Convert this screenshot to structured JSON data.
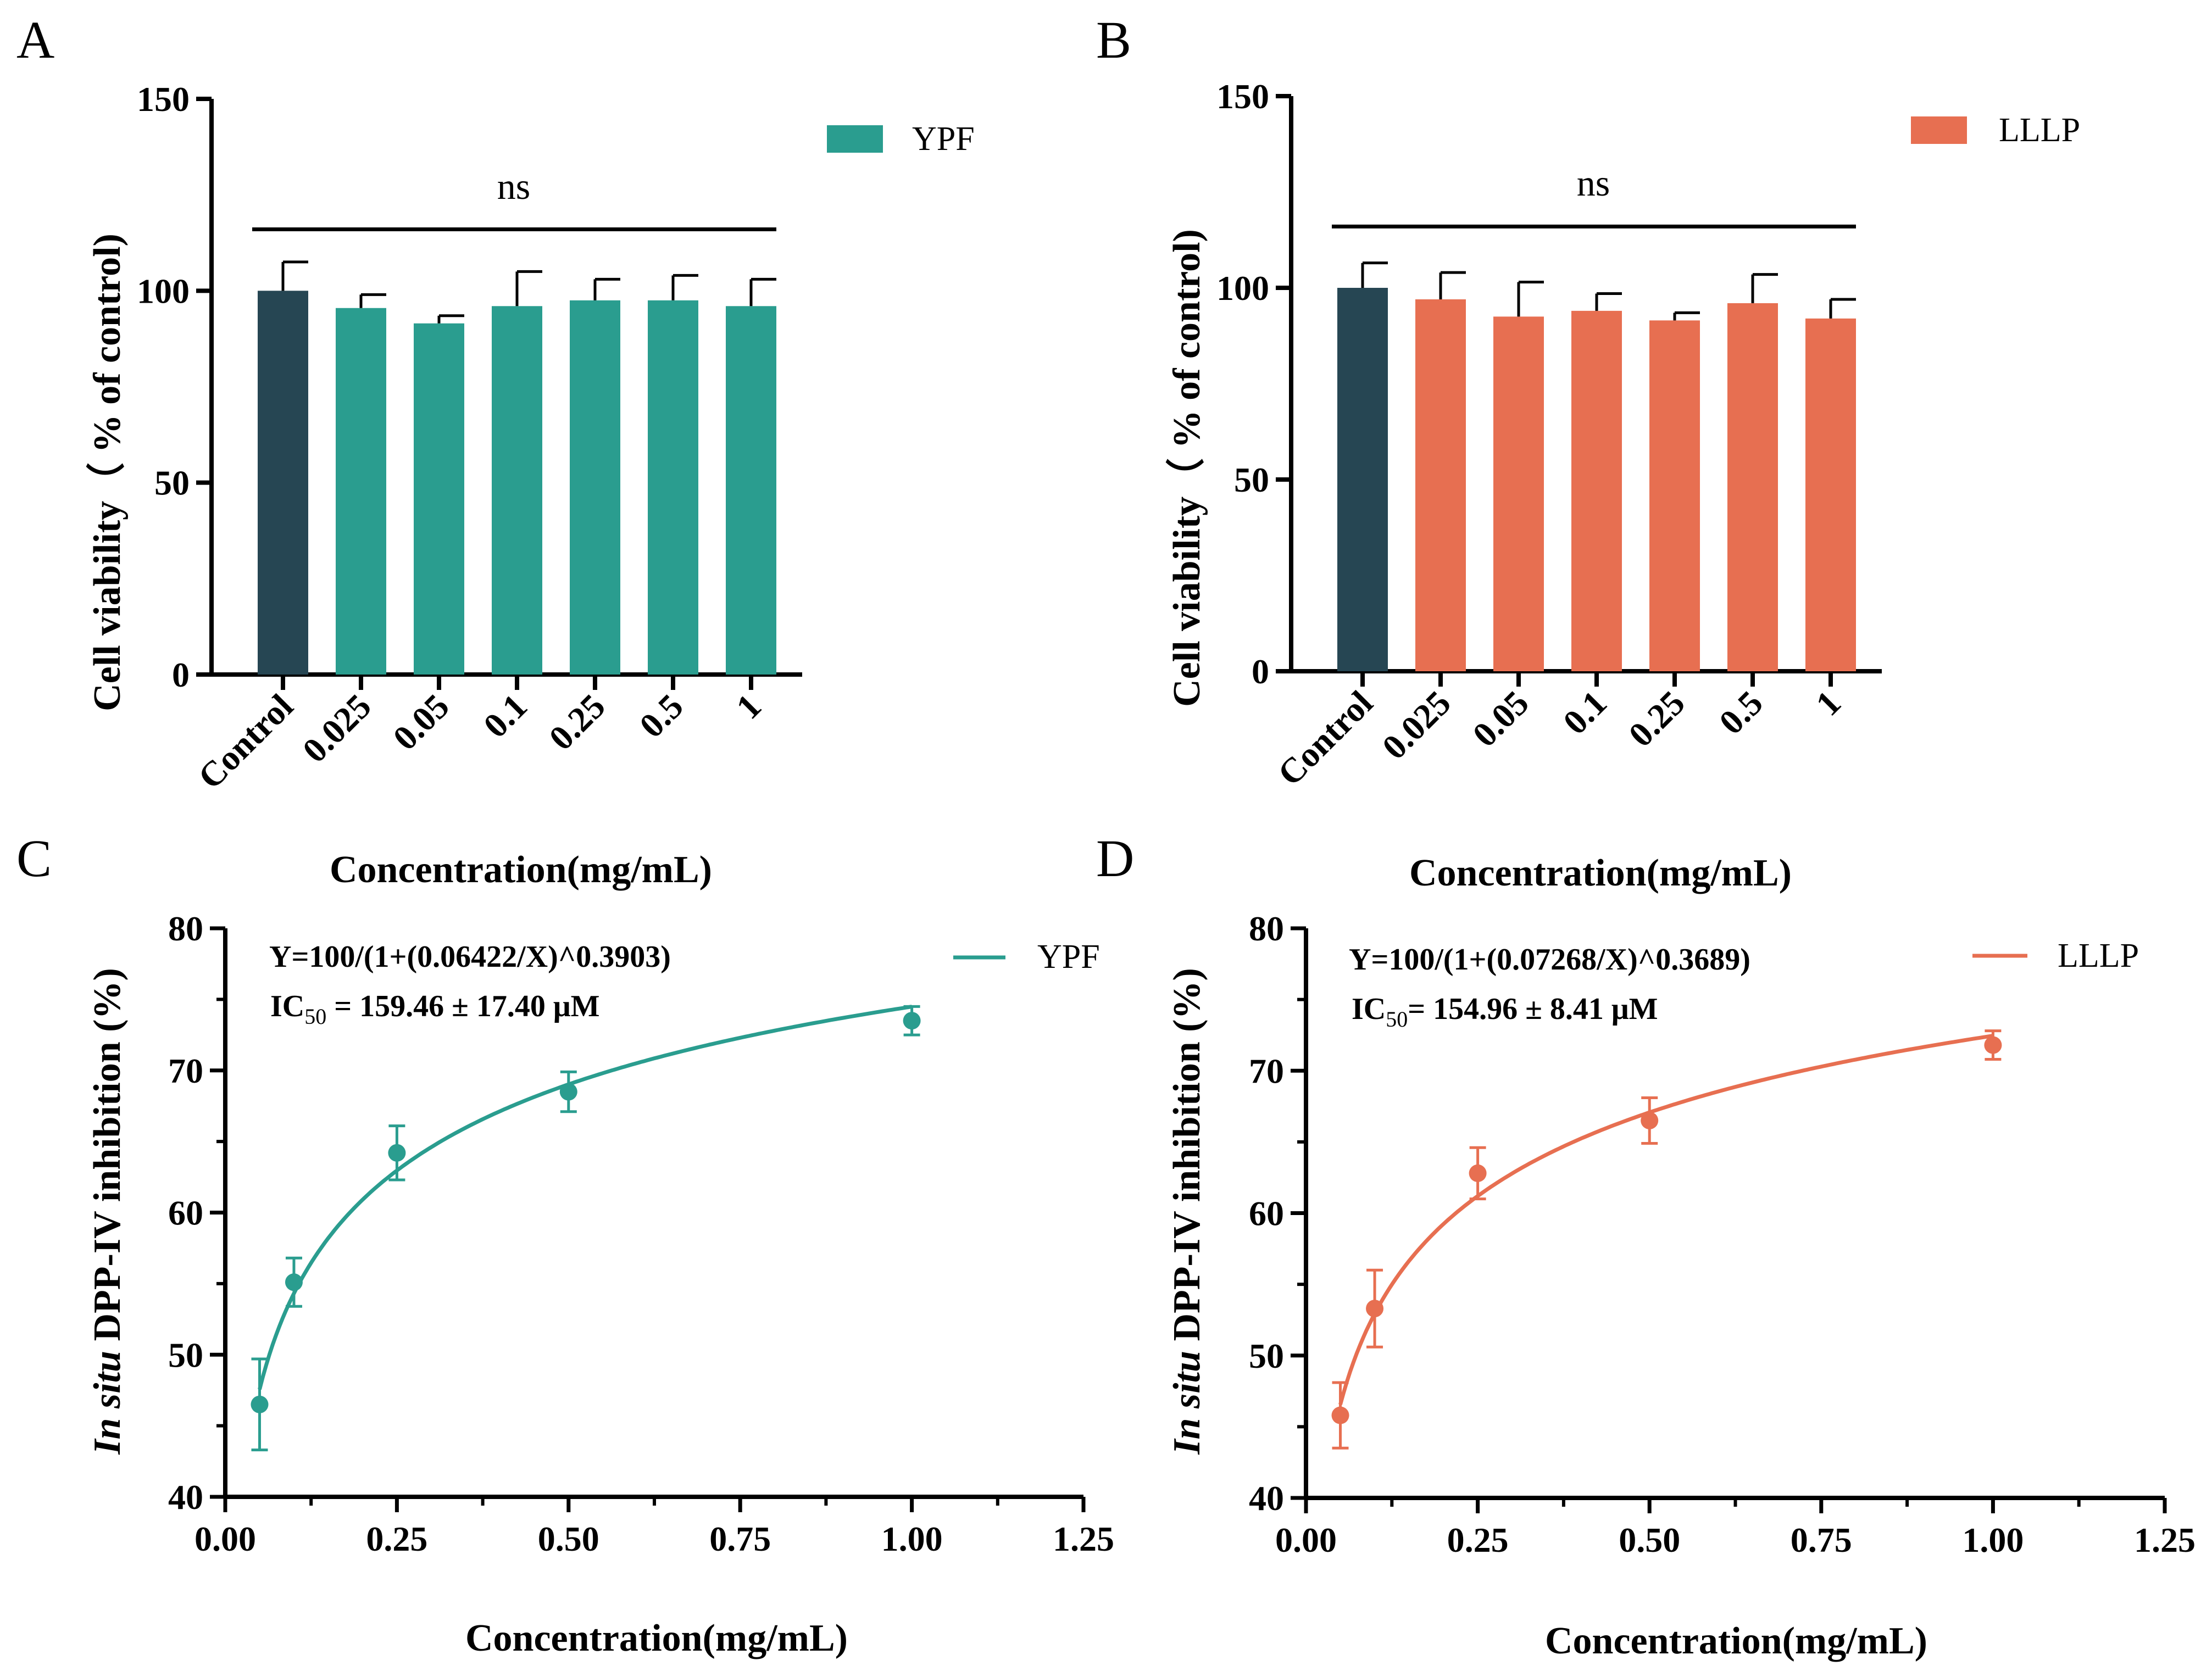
{
  "chart_data": [
    {
      "panel": "A",
      "type": "bar",
      "categories": [
        "Control",
        "0.025",
        "0.05",
        "0.1",
        "0.25",
        "0.5",
        "1"
      ],
      "values": [
        100,
        95.5,
        91.5,
        96,
        97.5,
        97.5,
        96
      ],
      "errors": [
        7.5,
        3.5,
        2.0,
        9.0,
        5.5,
        6.5,
        7.0
      ],
      "bar_colors": [
        "#264653",
        "#2a9d8f",
        "#2a9d8f",
        "#2a9d8f",
        "#2a9d8f",
        "#2a9d8f",
        "#2a9d8f"
      ],
      "legend": {
        "label": "YPF",
        "color": "#2a9d8f"
      },
      "significance": "ns",
      "significance_value": 116,
      "ylabel": "Cell viability（ % of control)",
      "xlabel": "Concentration(mg/mL)",
      "ylim": [
        0,
        150
      ],
      "yticks": [
        0,
        50,
        100,
        150
      ]
    },
    {
      "panel": "B",
      "type": "bar",
      "categories": [
        "Control",
        "0.025",
        "0.05",
        "0.1",
        "0.25",
        "0.5",
        "1"
      ],
      "values": [
        100,
        97,
        92.5,
        94,
        91.5,
        96,
        92
      ],
      "errors": [
        6.5,
        7.0,
        9.0,
        4.5,
        2.0,
        7.5,
        5.0
      ],
      "bar_colors": [
        "#264653",
        "#e76f51",
        "#e76f51",
        "#e76f51",
        "#e76f51",
        "#e76f51",
        "#e76f51"
      ],
      "legend": {
        "label": "LLLP",
        "color": "#e76f51"
      },
      "significance": "ns",
      "significance_value": 116,
      "ylabel": "Cell viability（ % of control)",
      "xlabel": "Concentration(mg/mL)",
      "ylim": [
        0,
        150
      ],
      "yticks": [
        0,
        50,
        100,
        150
      ]
    },
    {
      "panel": "C",
      "type": "scatter",
      "x": [
        0.05,
        0.1,
        0.25,
        0.5,
        1.0
      ],
      "y": [
        46.5,
        55.1,
        64.2,
        68.5,
        73.5
      ],
      "errors": [
        3.2,
        1.7,
        1.9,
        1.4,
        1.0
      ],
      "color": "#2a9d8f",
      "fit": {
        "c": 0.06422,
        "n": 0.3903
      },
      "equation": "Y=100/(1+(0.06422/X)^0.3903)",
      "ic50_prefix": "IC",
      "ic50_sub": "50",
      "ic50_value": " = 159.46 ± 17.40 μM",
      "legend": {
        "label": "YPF",
        "color": "#2a9d8f"
      },
      "ylabel_italic": "In situ",
      "ylabel_rest": " DPP-IV inhibition (%)",
      "xlabel": "Concentration(mg/mL)",
      "xlim": [
        0,
        1.25
      ],
      "ylim": [
        40,
        80
      ],
      "xticks": [
        "0.00",
        "0.25",
        "0.50",
        "0.75",
        "1.00",
        "1.25"
      ],
      "yticks": [
        40,
        50,
        60,
        70,
        80
      ]
    },
    {
      "panel": "D",
      "type": "scatter",
      "x": [
        0.05,
        0.1,
        0.25,
        0.5,
        1.0
      ],
      "y": [
        45.8,
        53.3,
        62.8,
        66.5,
        71.8
      ],
      "errors": [
        2.3,
        2.7,
        1.8,
        1.6,
        1.0
      ],
      "color": "#e76f51",
      "fit": {
        "c": 0.07268,
        "n": 0.3689
      },
      "equation": "Y=100/(1+(0.07268/X)^0.3689)",
      "ic50_prefix": "IC",
      "ic50_sub": "50",
      "ic50_value": "= 154.96 ± 8.41 μM",
      "legend": {
        "label": "LLLP",
        "color": "#e76f51"
      },
      "ylabel_italic": "In situ",
      "ylabel_rest": " DPP-IV inhibition (%)",
      "xlabel": "Concentration(mg/mL)",
      "xlim": [
        0,
        1.25
      ],
      "ylim": [
        40,
        80
      ],
      "xticks": [
        "0.00",
        "0.25",
        "0.50",
        "0.75",
        "1.00",
        "1.25"
      ],
      "yticks": [
        40,
        50,
        60,
        70,
        80
      ]
    }
  ]
}
